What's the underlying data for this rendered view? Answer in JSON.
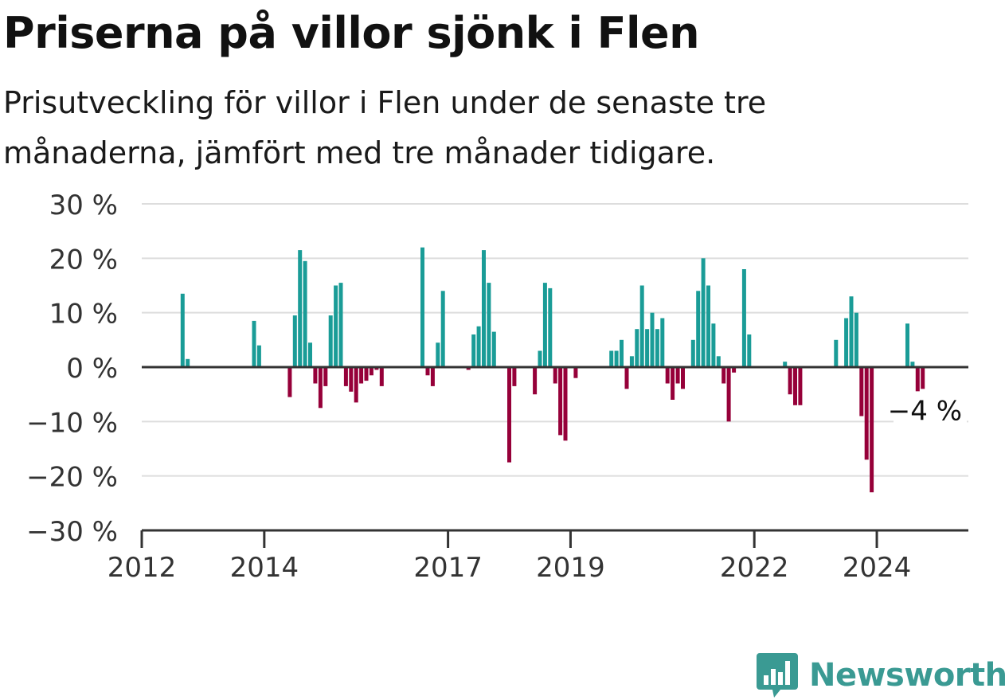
{
  "title": "Priserna på villor sjönk i Flen",
  "subtitle": "Prisutveckling för villor i Flen under de senaste tre månaderna, jämfört med tre månader tidigare.",
  "brand": "Newsworthy",
  "colors": {
    "positive": "#1a9c97",
    "negative": "#960039",
    "brand": "#3a9a93",
    "grid": "#dddddd",
    "axis": "#333333"
  },
  "chart_data": {
    "type": "bar",
    "ylim": [
      -30,
      30
    ],
    "y_ticks": [
      30,
      20,
      10,
      0,
      -10,
      -20,
      -30
    ],
    "y_tick_labels": [
      "30 %",
      "20 %",
      "10 %",
      "0 %",
      "−10 %",
      "−20 %",
      "−30 %"
    ],
    "x_tick_labels": [
      "2012",
      "2014",
      "2017",
      "2019",
      "2022",
      "2024"
    ],
    "x_tick_dates": [
      "2012-01",
      "2014-01",
      "2017-01",
      "2019-01",
      "2022-01",
      "2024-01"
    ],
    "x_range": [
      "2012-01",
      "2025-09"
    ],
    "annotation": {
      "label": "−4 %",
      "date": "2024-11",
      "value": -4
    },
    "points": [
      {
        "date": "2012-09",
        "value": 13.5
      },
      {
        "date": "2012-10",
        "value": 1.5
      },
      {
        "date": "2013-11",
        "value": 8.5
      },
      {
        "date": "2013-12",
        "value": 4
      },
      {
        "date": "2014-06",
        "value": -5.5
      },
      {
        "date": "2014-07",
        "value": 9.5
      },
      {
        "date": "2014-08",
        "value": 21.5
      },
      {
        "date": "2014-09",
        "value": 19.5
      },
      {
        "date": "2014-10",
        "value": 4.5
      },
      {
        "date": "2014-11",
        "value": -3
      },
      {
        "date": "2014-12",
        "value": -7.5
      },
      {
        "date": "2015-01",
        "value": -3.5
      },
      {
        "date": "2015-02",
        "value": 9.5
      },
      {
        "date": "2015-03",
        "value": 15
      },
      {
        "date": "2015-04",
        "value": 15.5
      },
      {
        "date": "2015-05",
        "value": -3.5
      },
      {
        "date": "2015-06",
        "value": -4.5
      },
      {
        "date": "2015-07",
        "value": -6.5
      },
      {
        "date": "2015-08",
        "value": -3
      },
      {
        "date": "2015-09",
        "value": -2.5
      },
      {
        "date": "2015-10",
        "value": -1.5
      },
      {
        "date": "2015-11",
        "value": -0.5
      },
      {
        "date": "2015-12",
        "value": -3.5
      },
      {
        "date": "2016-08",
        "value": 22
      },
      {
        "date": "2016-09",
        "value": -1.5
      },
      {
        "date": "2016-10",
        "value": -3.5
      },
      {
        "date": "2016-11",
        "value": 4.5
      },
      {
        "date": "2016-12",
        "value": 14
      },
      {
        "date": "2017-05",
        "value": -0.5
      },
      {
        "date": "2017-06",
        "value": 6
      },
      {
        "date": "2017-07",
        "value": 7.5
      },
      {
        "date": "2017-08",
        "value": 21.5
      },
      {
        "date": "2017-09",
        "value": 15.5
      },
      {
        "date": "2017-10",
        "value": 6.5
      },
      {
        "date": "2018-01",
        "value": -17.5
      },
      {
        "date": "2018-02",
        "value": -3.5
      },
      {
        "date": "2018-06",
        "value": -5
      },
      {
        "date": "2018-07",
        "value": 3
      },
      {
        "date": "2018-08",
        "value": 15.5
      },
      {
        "date": "2018-09",
        "value": 14.5
      },
      {
        "date": "2018-10",
        "value": -3
      },
      {
        "date": "2018-11",
        "value": -12.5
      },
      {
        "date": "2018-12",
        "value": -13.5
      },
      {
        "date": "2019-02",
        "value": -2
      },
      {
        "date": "2019-09",
        "value": 3
      },
      {
        "date": "2019-10",
        "value": 3
      },
      {
        "date": "2019-11",
        "value": 5
      },
      {
        "date": "2019-12",
        "value": -4
      },
      {
        "date": "2020-01",
        "value": 2
      },
      {
        "date": "2020-02",
        "value": 7
      },
      {
        "date": "2020-03",
        "value": 15
      },
      {
        "date": "2020-04",
        "value": 7
      },
      {
        "date": "2020-05",
        "value": 10
      },
      {
        "date": "2020-06",
        "value": 7
      },
      {
        "date": "2020-07",
        "value": 9
      },
      {
        "date": "2020-08",
        "value": -3
      },
      {
        "date": "2020-09",
        "value": -6
      },
      {
        "date": "2020-10",
        "value": -3
      },
      {
        "date": "2020-11",
        "value": -4
      },
      {
        "date": "2021-01",
        "value": 5
      },
      {
        "date": "2021-02",
        "value": 14
      },
      {
        "date": "2021-03",
        "value": 20
      },
      {
        "date": "2021-04",
        "value": 15
      },
      {
        "date": "2021-05",
        "value": 8
      },
      {
        "date": "2021-06",
        "value": 2
      },
      {
        "date": "2021-07",
        "value": -3
      },
      {
        "date": "2021-08",
        "value": -10
      },
      {
        "date": "2021-09",
        "value": -1
      },
      {
        "date": "2021-11",
        "value": 18
      },
      {
        "date": "2021-12",
        "value": 6
      },
      {
        "date": "2022-07",
        "value": 1
      },
      {
        "date": "2022-08",
        "value": -5
      },
      {
        "date": "2022-09",
        "value": -7
      },
      {
        "date": "2022-10",
        "value": -7
      },
      {
        "date": "2023-05",
        "value": 5
      },
      {
        "date": "2023-07",
        "value": 9
      },
      {
        "date": "2023-08",
        "value": 13
      },
      {
        "date": "2023-09",
        "value": 10
      },
      {
        "date": "2023-10",
        "value": -9
      },
      {
        "date": "2023-11",
        "value": -17
      },
      {
        "date": "2023-12",
        "value": -23
      },
      {
        "date": "2024-07",
        "value": 8
      },
      {
        "date": "2024-08",
        "value": 1
      },
      {
        "date": "2024-09",
        "value": -5
      },
      {
        "date": "2024-10",
        "value": -4
      }
    ]
  }
}
